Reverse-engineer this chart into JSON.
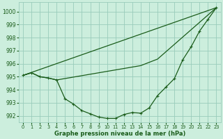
{
  "xlabel": "Graphe pression niveau de la mer (hPa)",
  "background_color": "#cceedd",
  "grid_color": "#99ccbb",
  "line_color": "#1a5c1a",
  "x_ticks": [
    0,
    1,
    2,
    3,
    4,
    5,
    6,
    7,
    8,
    9,
    10,
    11,
    12,
    13,
    14,
    15,
    16,
    17,
    18,
    19,
    20,
    21,
    22,
    23
  ],
  "xlim": [
    -0.5,
    23.5
  ],
  "ylim": [
    991.5,
    1000.7
  ],
  "y_ticks": [
    992,
    993,
    994,
    995,
    996,
    997,
    998,
    999,
    1000
  ],
  "series_main": {
    "x": [
      0,
      1,
      2,
      3,
      4,
      5,
      6,
      7,
      8,
      9,
      10,
      11,
      12,
      13,
      14,
      15,
      16,
      17,
      18,
      19,
      20,
      21,
      22,
      23
    ],
    "y": [
      995.1,
      995.3,
      995.0,
      994.9,
      994.75,
      993.3,
      992.9,
      992.4,
      992.15,
      991.9,
      991.8,
      991.8,
      992.1,
      992.25,
      992.2,
      992.6,
      993.55,
      994.2,
      994.85,
      996.3,
      997.3,
      998.5,
      999.4,
      1000.3
    ]
  },
  "series_upper": {
    "x": [
      0,
      23
    ],
    "y": [
      995.1,
      1000.3
    ]
  },
  "series_mid": {
    "x": [
      0,
      1,
      2,
      3,
      4,
      14,
      15,
      16,
      23
    ],
    "y": [
      995.1,
      995.3,
      995.0,
      994.9,
      994.75,
      995.85,
      996.1,
      996.35,
      1000.3
    ]
  }
}
